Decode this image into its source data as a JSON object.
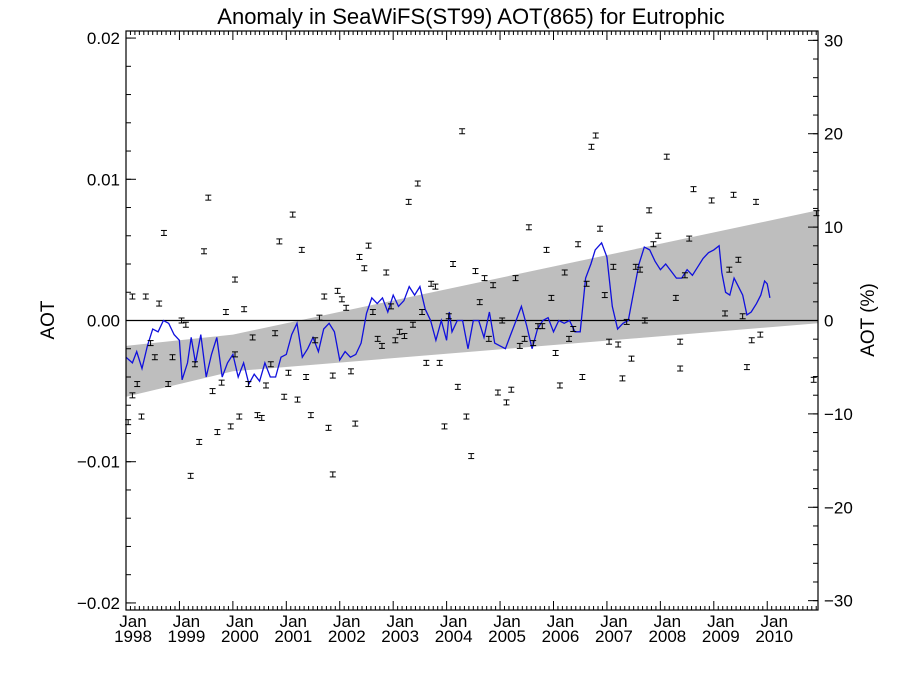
{
  "chart_data": {
    "type": "scatter",
    "title": "Anomaly in SeaWiFS(ST99) AOT(865) for Eutrophic",
    "ylabel": "AOT",
    "y2label": "AOT (%)",
    "xlabel": "",
    "xlim": [
      1998.0,
      2010.95
    ],
    "ylim": [
      -0.0205,
      0.0205
    ],
    "y2lim": [
      -31.0,
      31.0
    ],
    "yticks": [
      -0.02,
      -0.01,
      0.0,
      0.01,
      0.02
    ],
    "ytick_labels": [
      "−0.02",
      "−0.01",
      "0.00",
      "0.01",
      "0.02"
    ],
    "y2ticks": [
      -30,
      -20,
      -10,
      0,
      10,
      20,
      30
    ],
    "y2tick_labels": [
      "−30",
      "−20",
      "−10",
      "0",
      "10",
      "20",
      "30"
    ],
    "xticks": [
      1998,
      1999,
      2000,
      2001,
      2002,
      2003,
      2004,
      2005,
      2006,
      2007,
      2008,
      2009,
      2010
    ],
    "xtick_labels_top": [
      "Jan",
      "Jan",
      "Jan",
      "Jan",
      "Jan",
      "Jan",
      "Jan",
      "Jan",
      "Jan",
      "Jan",
      "Jan",
      "Jan",
      "Jan"
    ],
    "xtick_labels_bottom": [
      "1998",
      "1999",
      "2000",
      "2001",
      "2002",
      "2003",
      "2004",
      "2005",
      "2006",
      "2007",
      "2008",
      "2009",
      "2010"
    ],
    "zero_line": 0.0,
    "grid": false,
    "colors": {
      "smooth": "#1010dd",
      "band": "#bebebe",
      "points": "#000000"
    },
    "trend_band": {
      "x": [
        1998.0,
        2000.0,
        2010.95
      ],
      "upper": [
        -0.0018,
        -0.001,
        0.0078
      ],
      "lower": [
        -0.0054,
        -0.0036,
        -0.0002
      ]
    },
    "monthly_anomaly": [
      {
        "x": 1998.04,
        "y": -0.0072
      },
      {
        "x": 1998.12,
        "y": -0.0053
      },
      {
        "x": 1998.12,
        "y": 0.0017
      },
      {
        "x": 1998.21,
        "y": -0.0045
      },
      {
        "x": 1998.29,
        "y": -0.0068
      },
      {
        "x": 1998.37,
        "y": 0.0017
      },
      {
        "x": 1998.46,
        "y": -0.0016
      },
      {
        "x": 1998.54,
        "y": -0.0026
      },
      {
        "x": 1998.62,
        "y": 0.0012
      },
      {
        "x": 1998.71,
        "y": 0.0062
      },
      {
        "x": 1998.79,
        "y": -0.0045
      },
      {
        "x": 1998.87,
        "y": -0.0026
      },
      {
        "x": 1999.04,
        "y": 0.0
      },
      {
        "x": 1999.12,
        "y": -0.0003
      },
      {
        "x": 1999.21,
        "y": -0.011
      },
      {
        "x": 1999.29,
        "y": -0.0031
      },
      {
        "x": 1999.37,
        "y": -0.0086
      },
      {
        "x": 1999.46,
        "y": 0.0049
      },
      {
        "x": 1999.54,
        "y": 0.0087
      },
      {
        "x": 1999.62,
        "y": -0.005
      },
      {
        "x": 1999.71,
        "y": -0.0079
      },
      {
        "x": 1999.79,
        "y": -0.0044
      },
      {
        "x": 1999.87,
        "y": 0.0006
      },
      {
        "x": 1999.96,
        "y": -0.0075
      },
      {
        "x": 2000.04,
        "y": -0.0024
      },
      {
        "x": 2000.04,
        "y": 0.0029
      },
      {
        "x": 2000.12,
        "y": -0.0068
      },
      {
        "x": 2000.21,
        "y": 0.0008
      },
      {
        "x": 2000.29,
        "y": -0.0045
      },
      {
        "x": 2000.37,
        "y": -0.0012
      },
      {
        "x": 2000.46,
        "y": -0.0067
      },
      {
        "x": 2000.54,
        "y": -0.0069
      },
      {
        "x": 2000.62,
        "y": -0.0046
      },
      {
        "x": 2000.71,
        "y": -0.0031
      },
      {
        "x": 2000.79,
        "y": -0.0009
      },
      {
        "x": 2000.87,
        "y": 0.0056
      },
      {
        "x": 2000.96,
        "y": -0.0054
      },
      {
        "x": 2001.04,
        "y": -0.0037
      },
      {
        "x": 2001.12,
        "y": 0.0075
      },
      {
        "x": 2001.21,
        "y": -0.0056
      },
      {
        "x": 2001.29,
        "y": 0.005
      },
      {
        "x": 2001.37,
        "y": -0.004
      },
      {
        "x": 2001.46,
        "y": -0.0067
      },
      {
        "x": 2001.54,
        "y": -0.0014
      },
      {
        "x": 2001.62,
        "y": 0.0002
      },
      {
        "x": 2001.71,
        "y": 0.0017
      },
      {
        "x": 2001.79,
        "y": -0.0076
      },
      {
        "x": 2001.87,
        "y": -0.0109
      },
      {
        "x": 2001.87,
        "y": -0.0039
      },
      {
        "x": 2001.96,
        "y": 0.0021
      },
      {
        "x": 2002.04,
        "y": 0.0015
      },
      {
        "x": 2002.12,
        "y": 0.0009
      },
      {
        "x": 2002.21,
        "y": -0.0036
      },
      {
        "x": 2002.29,
        "y": -0.0073
      },
      {
        "x": 2002.37,
        "y": 0.0045
      },
      {
        "x": 2002.46,
        "y": 0.0037
      },
      {
        "x": 2002.54,
        "y": 0.0053
      },
      {
        "x": 2002.62,
        "y": 0.0006
      },
      {
        "x": 2002.71,
        "y": -0.0013
      },
      {
        "x": 2002.79,
        "y": -0.0018
      },
      {
        "x": 2002.87,
        "y": 0.0034
      },
      {
        "x": 2002.96,
        "y": 0.001
      },
      {
        "x": 2003.04,
        "y": -0.0014
      },
      {
        "x": 2003.12,
        "y": -0.0008
      },
      {
        "x": 2003.21,
        "y": -0.0011
      },
      {
        "x": 2003.29,
        "y": 0.0084
      },
      {
        "x": 2003.37,
        "y": -0.0003
      },
      {
        "x": 2003.46,
        "y": 0.0097
      },
      {
        "x": 2003.54,
        "y": 0.0006
      },
      {
        "x": 2003.62,
        "y": -0.003
      },
      {
        "x": 2003.71,
        "y": 0.0026
      },
      {
        "x": 2003.79,
        "y": 0.0024
      },
      {
        "x": 2003.87,
        "y": -0.003
      },
      {
        "x": 2003.96,
        "y": -0.0075
      },
      {
        "x": 2004.04,
        "y": 0.0003
      },
      {
        "x": 2004.12,
        "y": 0.004
      },
      {
        "x": 2004.21,
        "y": -0.0047
      },
      {
        "x": 2004.29,
        "y": 0.0134
      },
      {
        "x": 2004.37,
        "y": -0.0068
      },
      {
        "x": 2004.46,
        "y": -0.0096
      },
      {
        "x": 2004.54,
        "y": 0.0035
      },
      {
        "x": 2004.62,
        "y": 0.0013
      },
      {
        "x": 2004.71,
        "y": 0.003
      },
      {
        "x": 2004.79,
        "y": -0.0013
      },
      {
        "x": 2004.87,
        "y": 0.0025
      },
      {
        "x": 2004.96,
        "y": -0.0051
      },
      {
        "x": 2005.04,
        "y": 0.0
      },
      {
        "x": 2005.12,
        "y": -0.0058
      },
      {
        "x": 2005.21,
        "y": -0.0049
      },
      {
        "x": 2005.29,
        "y": 0.003
      },
      {
        "x": 2005.37,
        "y": -0.0018
      },
      {
        "x": 2005.46,
        "y": -0.0013
      },
      {
        "x": 2005.54,
        "y": 0.0066
      },
      {
        "x": 2005.62,
        "y": -0.0016
      },
      {
        "x": 2005.71,
        "y": -0.0004
      },
      {
        "x": 2005.79,
        "y": -0.0004
      },
      {
        "x": 2005.87,
        "y": 0.005
      },
      {
        "x": 2005.96,
        "y": 0.0016
      },
      {
        "x": 2006.04,
        "y": -0.0023
      },
      {
        "x": 2006.12,
        "y": -0.0046
      },
      {
        "x": 2006.21,
        "y": 0.0034
      },
      {
        "x": 2006.29,
        "y": -0.0013
      },
      {
        "x": 2006.37,
        "y": -0.0006
      },
      {
        "x": 2006.46,
        "y": 0.0054
      },
      {
        "x": 2006.54,
        "y": -0.004
      },
      {
        "x": 2006.62,
        "y": 0.0026
      },
      {
        "x": 2006.71,
        "y": 0.0123
      },
      {
        "x": 2006.79,
        "y": 0.0131
      },
      {
        "x": 2006.87,
        "y": 0.0065
      },
      {
        "x": 2006.96,
        "y": 0.0018
      },
      {
        "x": 2007.04,
        "y": -0.0015
      },
      {
        "x": 2007.12,
        "y": 0.0038
      },
      {
        "x": 2007.21,
        "y": -0.0017
      },
      {
        "x": 2007.29,
        "y": -0.0041
      },
      {
        "x": 2007.37,
        "y": -0.0001
      },
      {
        "x": 2007.46,
        "y": -0.0027
      },
      {
        "x": 2007.54,
        "y": 0.0038
      },
      {
        "x": 2007.62,
        "y": 0.0036
      },
      {
        "x": 2007.71,
        "y": 0.0
      },
      {
        "x": 2007.79,
        "y": 0.0078
      },
      {
        "x": 2007.87,
        "y": 0.0054
      },
      {
        "x": 2007.96,
        "y": 0.006
      },
      {
        "x": 2008.12,
        "y": 0.0116
      },
      {
        "x": 2008.29,
        "y": 0.0016
      },
      {
        "x": 2008.37,
        "y": -0.0015
      },
      {
        "x": 2008.37,
        "y": -0.0034
      },
      {
        "x": 2008.46,
        "y": 0.0032
      },
      {
        "x": 2008.54,
        "y": 0.0058
      },
      {
        "x": 2008.62,
        "y": 0.0093
      },
      {
        "x": 2008.96,
        "y": 0.0085
      },
      {
        "x": 2009.21,
        "y": 0.0005
      },
      {
        "x": 2009.29,
        "y": 0.0036
      },
      {
        "x": 2009.37,
        "y": 0.0089
      },
      {
        "x": 2009.46,
        "y": 0.0043
      },
      {
        "x": 2009.54,
        "y": 0.0003
      },
      {
        "x": 2009.62,
        "y": -0.0033
      },
      {
        "x": 2009.71,
        "y": -0.0014
      },
      {
        "x": 2009.79,
        "y": 0.0084
      },
      {
        "x": 2009.87,
        "y": -0.001
      },
      {
        "x": 2010.87,
        "y": -0.0042
      },
      {
        "x": 2010.92,
        "y": 0.0076
      }
    ],
    "smoothed_series": [
      {
        "x": 1998.0,
        "y": -0.0026
      },
      {
        "x": 1998.12,
        "y": -0.003
      },
      {
        "x": 1998.2,
        "y": -0.0022
      },
      {
        "x": 1998.3,
        "y": -0.0034
      },
      {
        "x": 1998.4,
        "y": -0.0018
      },
      {
        "x": 1998.5,
        "y": -0.0006
      },
      {
        "x": 1998.6,
        "y": -0.0008
      },
      {
        "x": 1998.7,
        "y": 0.0
      },
      {
        "x": 1998.8,
        "y": -0.0002
      },
      {
        "x": 1998.9,
        "y": -0.001
      },
      {
        "x": 1999.0,
        "y": -0.0014
      },
      {
        "x": 1999.05,
        "y": -0.0042
      },
      {
        "x": 1999.15,
        "y": -0.003
      },
      {
        "x": 1999.22,
        "y": -0.0012
      },
      {
        "x": 1999.3,
        "y": -0.003
      },
      {
        "x": 1999.4,
        "y": -0.001
      },
      {
        "x": 1999.5,
        "y": -0.004
      },
      {
        "x": 1999.6,
        "y": -0.0024
      },
      {
        "x": 1999.7,
        "y": -0.0012
      },
      {
        "x": 1999.8,
        "y": -0.004
      },
      {
        "x": 1999.9,
        "y": -0.003
      },
      {
        "x": 2000.0,
        "y": -0.0024
      },
      {
        "x": 2000.1,
        "y": -0.004
      },
      {
        "x": 2000.2,
        "y": -0.003
      },
      {
        "x": 2000.3,
        "y": -0.0045
      },
      {
        "x": 2000.4,
        "y": -0.0038
      },
      {
        "x": 2000.5,
        "y": -0.0043
      },
      {
        "x": 2000.6,
        "y": -0.003
      },
      {
        "x": 2000.7,
        "y": -0.004
      },
      {
        "x": 2000.8,
        "y": -0.004
      },
      {
        "x": 2000.9,
        "y": -0.0026
      },
      {
        "x": 2001.0,
        "y": -0.0024
      },
      {
        "x": 2001.1,
        "y": -0.001
      },
      {
        "x": 2001.2,
        "y": -0.0002
      },
      {
        "x": 2001.3,
        "y": -0.0026
      },
      {
        "x": 2001.4,
        "y": -0.002
      },
      {
        "x": 2001.5,
        "y": -0.0012
      },
      {
        "x": 2001.6,
        "y": -0.0022
      },
      {
        "x": 2001.7,
        "y": -0.0006
      },
      {
        "x": 2001.8,
        "y": -0.0002
      },
      {
        "x": 2001.9,
        "y": -0.0008
      },
      {
        "x": 2002.0,
        "y": -0.0028
      },
      {
        "x": 2002.1,
        "y": -0.0022
      },
      {
        "x": 2002.2,
        "y": -0.0026
      },
      {
        "x": 2002.3,
        "y": -0.0024
      },
      {
        "x": 2002.4,
        "y": -0.0016
      },
      {
        "x": 2002.5,
        "y": 0.0005
      },
      {
        "x": 2002.6,
        "y": 0.0016
      },
      {
        "x": 2002.7,
        "y": 0.0012
      },
      {
        "x": 2002.8,
        "y": 0.0016
      },
      {
        "x": 2002.9,
        "y": 0.0006
      },
      {
        "x": 2003.0,
        "y": 0.0018
      },
      {
        "x": 2003.1,
        "y": 0.001
      },
      {
        "x": 2003.2,
        "y": 0.0014
      },
      {
        "x": 2003.3,
        "y": 0.0024
      },
      {
        "x": 2003.4,
        "y": 0.0018
      },
      {
        "x": 2003.5,
        "y": 0.0024
      },
      {
        "x": 2003.6,
        "y": 0.0008
      },
      {
        "x": 2003.7,
        "y": 0.0
      },
      {
        "x": 2003.8,
        "y": -0.0014
      },
      {
        "x": 2003.9,
        "y": 0.0
      },
      {
        "x": 2004.0,
        "y": -0.0014
      },
      {
        "x": 2004.05,
        "y": 0.0006
      },
      {
        "x": 2004.1,
        "y": -0.0008
      },
      {
        "x": 2004.2,
        "y": 0.0
      },
      {
        "x": 2004.3,
        "y": 0.0
      },
      {
        "x": 2004.4,
        "y": -0.002
      },
      {
        "x": 2004.5,
        "y": 0.0
      },
      {
        "x": 2004.6,
        "y": 0.0
      },
      {
        "x": 2004.7,
        "y": -0.0012
      },
      {
        "x": 2004.8,
        "y": 0.0006
      },
      {
        "x": 2004.9,
        "y": -0.0016
      },
      {
        "x": 2005.0,
        "y": -0.0018
      },
      {
        "x": 2005.1,
        "y": -0.002
      },
      {
        "x": 2005.2,
        "y": -0.001
      },
      {
        "x": 2005.3,
        "y": 0.0
      },
      {
        "x": 2005.4,
        "y": 0.001
      },
      {
        "x": 2005.5,
        "y": -0.0004
      },
      {
        "x": 2005.6,
        "y": -0.002
      },
      {
        "x": 2005.7,
        "y": -0.0006
      },
      {
        "x": 2005.8,
        "y": 0.0
      },
      {
        "x": 2005.9,
        "y": 0.0002
      },
      {
        "x": 2006.0,
        "y": -0.0008
      },
      {
        "x": 2006.1,
        "y": 0.0
      },
      {
        "x": 2006.2,
        "y": -0.0002
      },
      {
        "x": 2006.3,
        "y": 0.0
      },
      {
        "x": 2006.4,
        "y": -0.0008
      },
      {
        "x": 2006.5,
        "y": -0.0008
      },
      {
        "x": 2006.6,
        "y": 0.003
      },
      {
        "x": 2006.7,
        "y": 0.004
      },
      {
        "x": 2006.78,
        "y": 0.005
      },
      {
        "x": 2006.9,
        "y": 0.0055
      },
      {
        "x": 2007.0,
        "y": 0.0045
      },
      {
        "x": 2007.1,
        "y": 0.001
      },
      {
        "x": 2007.2,
        "y": -0.0006
      },
      {
        "x": 2007.3,
        "y": -0.0002
      },
      {
        "x": 2007.4,
        "y": 0.0
      },
      {
        "x": 2007.5,
        "y": 0.002
      },
      {
        "x": 2007.6,
        "y": 0.004
      },
      {
        "x": 2007.7,
        "y": 0.0052
      },
      {
        "x": 2007.8,
        "y": 0.005
      },
      {
        "x": 2007.9,
        "y": 0.0042
      },
      {
        "x": 2008.0,
        "y": 0.0036
      },
      {
        "x": 2008.1,
        "y": 0.004
      },
      {
        "x": 2008.2,
        "y": 0.0035
      },
      {
        "x": 2008.3,
        "y": 0.003
      },
      {
        "x": 2008.4,
        "y": 0.003
      },
      {
        "x": 2008.5,
        "y": 0.0036
      },
      {
        "x": 2008.6,
        "y": 0.0032
      },
      {
        "x": 2008.7,
        "y": 0.0038
      },
      {
        "x": 2008.8,
        "y": 0.0044
      },
      {
        "x": 2008.9,
        "y": 0.0048
      },
      {
        "x": 2009.0,
        "y": 0.005
      },
      {
        "x": 2009.1,
        "y": 0.0053
      },
      {
        "x": 2009.15,
        "y": 0.0034
      },
      {
        "x": 2009.22,
        "y": 0.002
      },
      {
        "x": 2009.3,
        "y": 0.0018
      },
      {
        "x": 2009.38,
        "y": 0.003
      },
      {
        "x": 2009.46,
        "y": 0.0024
      },
      {
        "x": 2009.54,
        "y": 0.0018
      },
      {
        "x": 2009.62,
        "y": 0.0004
      },
      {
        "x": 2009.7,
        "y": 0.0006
      },
      {
        "x": 2009.8,
        "y": 0.0012
      },
      {
        "x": 2009.88,
        "y": 0.0018
      },
      {
        "x": 2009.95,
        "y": 0.0028
      },
      {
        "x": 2010.0,
        "y": 0.0026
      },
      {
        "x": 2010.05,
        "y": 0.0016
      }
    ]
  }
}
